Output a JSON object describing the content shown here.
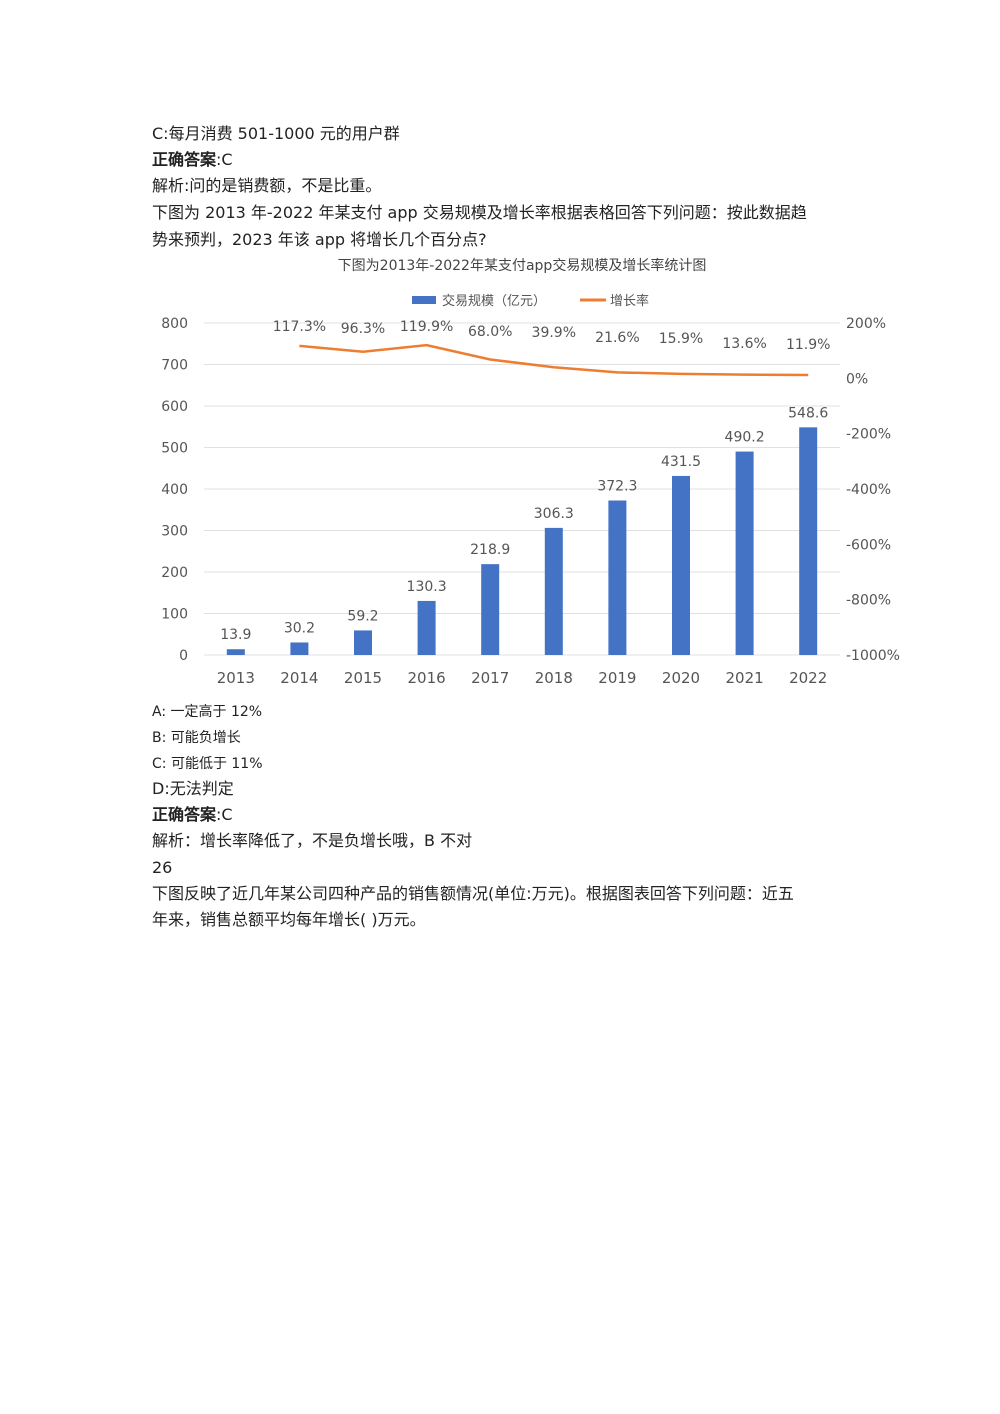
{
  "lines": {
    "l1": "C:每月消费 501-1000 元的用户群",
    "l2a": "正确答案",
    "l2b": ":C",
    "l3": "解析:问的是销费额，不是比重。",
    "l4": "下图为 2013 年-2022 年某支付 app 交易规模及增长率根据表格回答下列问题：按此数据趋",
    "l5": "势来预判，2023 年该 app 将增长几个百分点?"
  },
  "options": {
    "a": "A:  一定高于 12%",
    "b": "B:  可能负增长",
    "c": "C:  可能低于 11%",
    "d": "D:无法判定"
  },
  "answer2": {
    "label": "正确答案",
    "value": ":C"
  },
  "analysis2": "解析：增长率降低了，不是负增长哦，B 不对",
  "qnum": "26",
  "q26": {
    "l1": "下图反映了近几年某公司四种产品的销售额情况(单位:万元)。根据图表回答下列问题：近五",
    "l2": "年来，销售总额平均每年增长(  )万元。"
  },
  "chart_data": {
    "type": "bar",
    "title": "下图为2013年-2022年某支付app交易规模及增长率统计图",
    "categories": [
      "2013",
      "2014",
      "2015",
      "2016",
      "2017",
      "2018",
      "2019",
      "2020",
      "2021",
      "2022"
    ],
    "series": [
      {
        "name": "交易规模（亿元）",
        "type": "bar",
        "axis": "left",
        "values": [
          13.9,
          30.2,
          59.2,
          130.3,
          218.9,
          306.3,
          372.3,
          431.5,
          490.2,
          548.6
        ],
        "labels": [
          "13.9",
          "30.2",
          "59.2",
          "130.3",
          "218.9",
          "306.3",
          "372.3",
          "431.5",
          "490.2",
          "548.6"
        ]
      },
      {
        "name": "增长率",
        "type": "line",
        "axis": "right",
        "x": [
          "2014",
          "2015",
          "2016",
          "2017",
          "2018",
          "2019",
          "2020",
          "2021",
          "2022"
        ],
        "values": [
          117.3,
          96.3,
          119.9,
          68.0,
          39.9,
          21.6,
          15.9,
          13.6,
          11.9
        ],
        "labels": [
          "117.3%",
          "96.3%",
          "119.9%",
          "68.0%",
          "39.9%",
          "21.6%",
          "15.9%",
          "13.6%",
          "11.9%"
        ]
      }
    ],
    "left_axis": {
      "ylim": [
        0,
        800
      ],
      "ticks": [
        0,
        100,
        200,
        300,
        400,
        500,
        600,
        700,
        800
      ],
      "tick_labels": [
        "0",
        "100",
        "200",
        "300",
        "400",
        "500",
        "600",
        "700",
        "800"
      ]
    },
    "right_axis": {
      "ylim": [
        -1000,
        200
      ],
      "ticks": [
        -1000,
        -800,
        -600,
        -400,
        -200,
        0,
        200
      ],
      "tick_labels": [
        "-1000%",
        "-800%",
        "-600%",
        "-400%",
        "-200%",
        "0%",
        "200%"
      ]
    },
    "grid": true,
    "legend": "top",
    "colors": {
      "bar": "#4472C4",
      "line": "#ED7D31",
      "grid": "#E0E0E0",
      "text": "#555555"
    }
  }
}
